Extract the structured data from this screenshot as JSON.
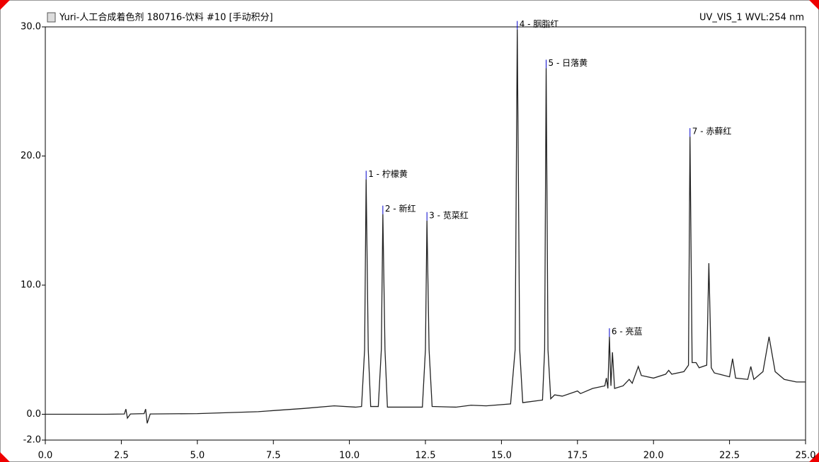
{
  "chart_data": {
    "type": "line",
    "title": "Yuri-人工合成着色剂 180716-饮料 #10 [手动积分]",
    "subtitle": "UV_VIS_1 WVL:254 nm",
    "color": "#222222",
    "peak_color": "#0000cc",
    "xlim": [
      0,
      25
    ],
    "ylim": [
      -2,
      30
    ],
    "xticks": [
      {
        "value": 0,
        "label": "0.0"
      },
      {
        "value": 2.5,
        "label": "2.5"
      },
      {
        "value": 5,
        "label": "5.0"
      },
      {
        "value": 7.5,
        "label": "7.5"
      },
      {
        "value": 10,
        "label": "10.0"
      },
      {
        "value": 12.5,
        "label": "12.5"
      },
      {
        "value": 15,
        "label": "15.0"
      },
      {
        "value": 17.5,
        "label": "17.5"
      },
      {
        "value": 20,
        "label": "20.0"
      },
      {
        "value": 22.5,
        "label": "22.5"
      },
      {
        "value": 25,
        "label": "25.0"
      }
    ],
    "yticks": [
      {
        "value": -2,
        "label": "-2.0"
      },
      {
        "value": 0,
        "label": "0.0"
      },
      {
        "value": 10,
        "label": "10.0"
      },
      {
        "value": 20,
        "label": "20.0"
      },
      {
        "value": 30,
        "label": "30.0"
      }
    ],
    "x": [
      0,
      2.0,
      2.6,
      2.65,
      2.7,
      2.8,
      3.25,
      3.3,
      3.35,
      3.45,
      5.0,
      7.0,
      8.5,
      9.5,
      10.2,
      10.4,
      10.5,
      10.55,
      10.62,
      10.7,
      10.95,
      11.05,
      11.1,
      11.17,
      11.25,
      12.4,
      12.5,
      12.55,
      12.62,
      12.72,
      13.5,
      14.0,
      14.5,
      15.3,
      15.45,
      15.52,
      15.6,
      15.7,
      16.35,
      16.42,
      16.47,
      16.53,
      16.62,
      16.75,
      17.0,
      17.5,
      17.6,
      18.0,
      18.4,
      18.45,
      18.5,
      18.55,
      18.6,
      18.65,
      18.72,
      19.0,
      19.2,
      19.3,
      19.5,
      19.6,
      20.0,
      20.4,
      20.5,
      20.6,
      21.0,
      21.15,
      21.2,
      21.27,
      21.4,
      21.5,
      21.75,
      21.82,
      21.9,
      22.0,
      22.5,
      22.6,
      22.7,
      23.1,
      23.2,
      23.3,
      23.6,
      23.8,
      24.0,
      24.3,
      24.7,
      25.0
    ],
    "values": [
      0,
      0,
      0.02,
      0.4,
      -0.3,
      0.02,
      0.05,
      0.4,
      -0.7,
      0.02,
      0.05,
      0.2,
      0.45,
      0.65,
      0.55,
      0.6,
      5,
      18.2,
      5,
      0.6,
      0.6,
      5,
      15.5,
      5,
      0.55,
      0.55,
      5,
      15.0,
      5,
      0.6,
      0.55,
      0.7,
      0.65,
      0.8,
      5,
      29.8,
      5,
      0.9,
      1.1,
      5,
      26.8,
      5,
      1.2,
      1.5,
      1.4,
      1.8,
      1.6,
      2.0,
      2.2,
      2.8,
      2.0,
      6.0,
      2.2,
      4.8,
      2.0,
      2.2,
      2.7,
      2.4,
      3.7,
      3.0,
      2.8,
      3.1,
      3.4,
      3.1,
      3.3,
      3.8,
      21.5,
      4,
      4.0,
      3.6,
      3.8,
      11.7,
      3.6,
      3.2,
      2.9,
      4.3,
      2.8,
      2.7,
      3.7,
      2.7,
      3.3,
      6.0,
      3.3,
      2.7,
      2.5,
      2.5
    ],
    "peaks": [
      {
        "label": "1 - 柠檬黄",
        "x": 10.55,
        "y": 18.2
      },
      {
        "label": "2 - 新红",
        "x": 11.1,
        "y": 15.5
      },
      {
        "label": "3 - 苋菜红",
        "x": 12.55,
        "y": 15.0
      },
      {
        "label": "4 - 胭脂红",
        "x": 15.52,
        "y": 29.8
      },
      {
        "label": "5 - 日落黄",
        "x": 16.47,
        "y": 26.8
      },
      {
        "label": "6 - 亮蓝",
        "x": 18.55,
        "y": 6.0
      },
      {
        "label": "7 - 赤藓红",
        "x": 21.2,
        "y": 21.5
      }
    ]
  }
}
